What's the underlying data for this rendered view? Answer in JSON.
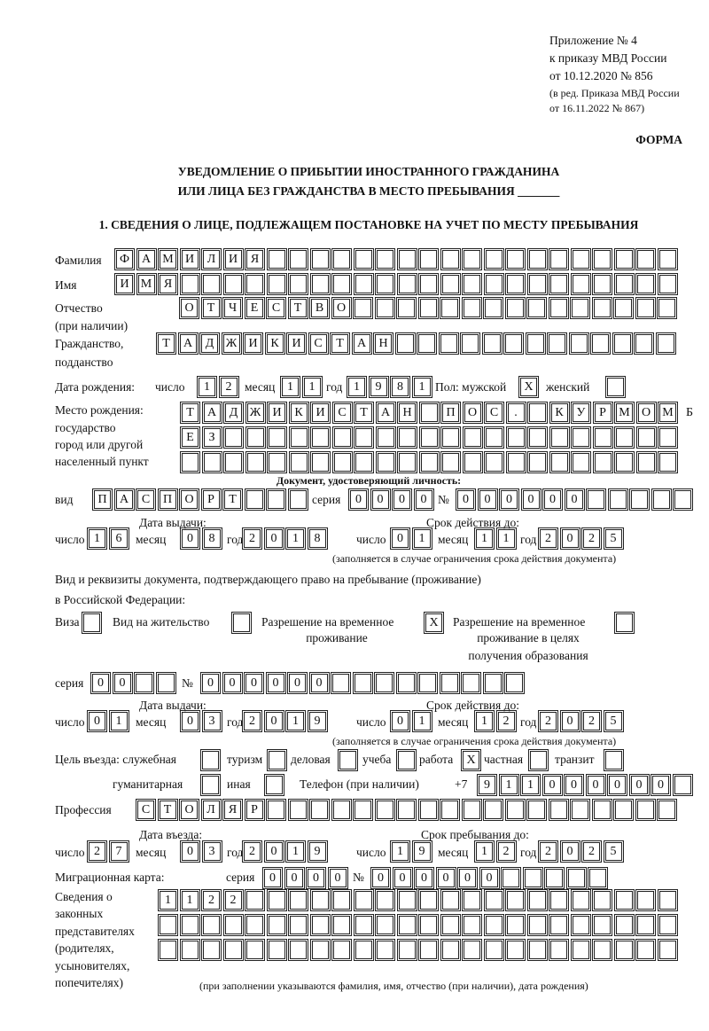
{
  "header": {
    "appendix": "Приложение № 4",
    "order": "к приказу МВД России",
    "order_date": "от 10.12.2020 № 856",
    "revision1": "(в ред. Приказа МВД России",
    "revision2": "от 16.11.2022 № 867)",
    "form_label": "ФОРМА",
    "title1": "УВЕДОМЛЕНИЕ О ПРИБЫТИИ ИНОСТРАННОГО ГРАЖДАНИНА",
    "title2": "ИЛИ ЛИЦА БЕЗ ГРАЖДАНСТВА В МЕСТО ПРЕБЫВАНИЯ _______",
    "section1": "1. СВЕДЕНИЯ О ЛИЦЕ, ПОДЛЕЖАЩЕМ ПОСТАНОВКЕ НА УЧЕТ ПО МЕСТУ ПРЕБЫВАНИЯ"
  },
  "labels": {
    "surname": "Фамилия",
    "name": "Имя",
    "patronymic1": "Отчество",
    "patronymic2": "(при наличии)",
    "citizenship1": "Гражданство,",
    "citizenship2": "подданство",
    "birth_date": "Дата рождения:",
    "day": "число",
    "month": "месяц",
    "year": "год",
    "sex_male": "Пол: мужской",
    "sex_female": "женский",
    "birthplace1": "Место рождения:",
    "birthplace2": "государство",
    "birthplace3": "город или другой",
    "birthplace4": "населенный пункт",
    "id_doc": "Документ, удостоверяющий личность:",
    "kind": "вид",
    "series": "серия",
    "number": "№",
    "issue_date": "Дата выдачи:",
    "valid_until": "Срок действия до:",
    "validity_note": "(заполняется в случае ограничения срока действия документа)",
    "stay_doc1": "Вид и реквизиты документа, подтверждающего право на пребывание (проживание)",
    "stay_doc2": "в Российской Федерации:",
    "visa": "Виза",
    "residence": "Вид на жительство",
    "trp1": "Разрешение на временное",
    "trp2": "проживание",
    "trpe1": "Разрешение на временное",
    "trpe2": "проживание в целях",
    "trpe3": "получения образования",
    "purpose": "Цель въезда: служебная",
    "tourism": "туризм",
    "business": "деловая",
    "study": "учеба",
    "work": "работа",
    "private": "частная",
    "transit": "транзит",
    "humanitarian": "гуманитарная",
    "other": "иная",
    "phone": "Телефон (при наличии)",
    "phone_prefix": "+7",
    "profession": "Профессия",
    "entry_date": "Дата въезда:",
    "stay_until": "Срок пребывания до:",
    "migration_card": "Миграционная карта:",
    "reps1": "Сведения о",
    "reps2": "законных",
    "reps3": "представителях",
    "reps4": "(родителях,",
    "reps5": "усыновителях,",
    "reps6": "попечителях)",
    "reps_note": "(при заполнении указываются фамилия, имя, отчество (при наличии), дата рождения)"
  },
  "fields": {
    "surname": "ФАМИЛИЯ",
    "name": "ИМЯ",
    "patronymic": "ОТЧЕСТВО",
    "citizenship": "ТАДЖИКИСТАН",
    "birth_day": "12",
    "birth_month": "11",
    "birth_year": "1981",
    "sex_male": "X",
    "sex_female": "",
    "birthplace_line1": "ТАДЖИКИСТАН ПОС. КУРМОМБ",
    "birthplace_line2": "ЕЗ",
    "birthplace_line3": "",
    "id_kind": "ПАСПОРТ",
    "id_series": "0000",
    "id_number": "000000",
    "id_issue_day": "16",
    "id_issue_month": "08",
    "id_issue_year": "2018",
    "id_valid_day": "01",
    "id_valid_month": "11",
    "id_valid_year": "2025",
    "visa": "",
    "residence": "",
    "trp": "X",
    "trp_education": "",
    "stay_series": "00",
    "stay_number": "000000",
    "stay_issue_day": "01",
    "stay_issue_month": "03",
    "stay_issue_year": "2019",
    "stay_valid_day": "01",
    "stay_valid_month": "12",
    "stay_valid_year": "2025",
    "purpose_official": "",
    "purpose_tourism": "",
    "purpose_business": "",
    "purpose_study": "",
    "purpose_work": "X",
    "purpose_private": "",
    "purpose_transit": "",
    "purpose_humanitarian": "",
    "purpose_other": "",
    "phone": "911000000",
    "profession": "СТОЛЯР",
    "entry_day": "27",
    "entry_month": "03",
    "entry_year": "2019",
    "stay_until_day": "19",
    "stay_until_month": "12",
    "stay_until_year": "2025",
    "mc_series": "0000",
    "mc_number": "000000",
    "reps_line1": "1122",
    "reps_line2": "",
    "reps_line3": ""
  }
}
